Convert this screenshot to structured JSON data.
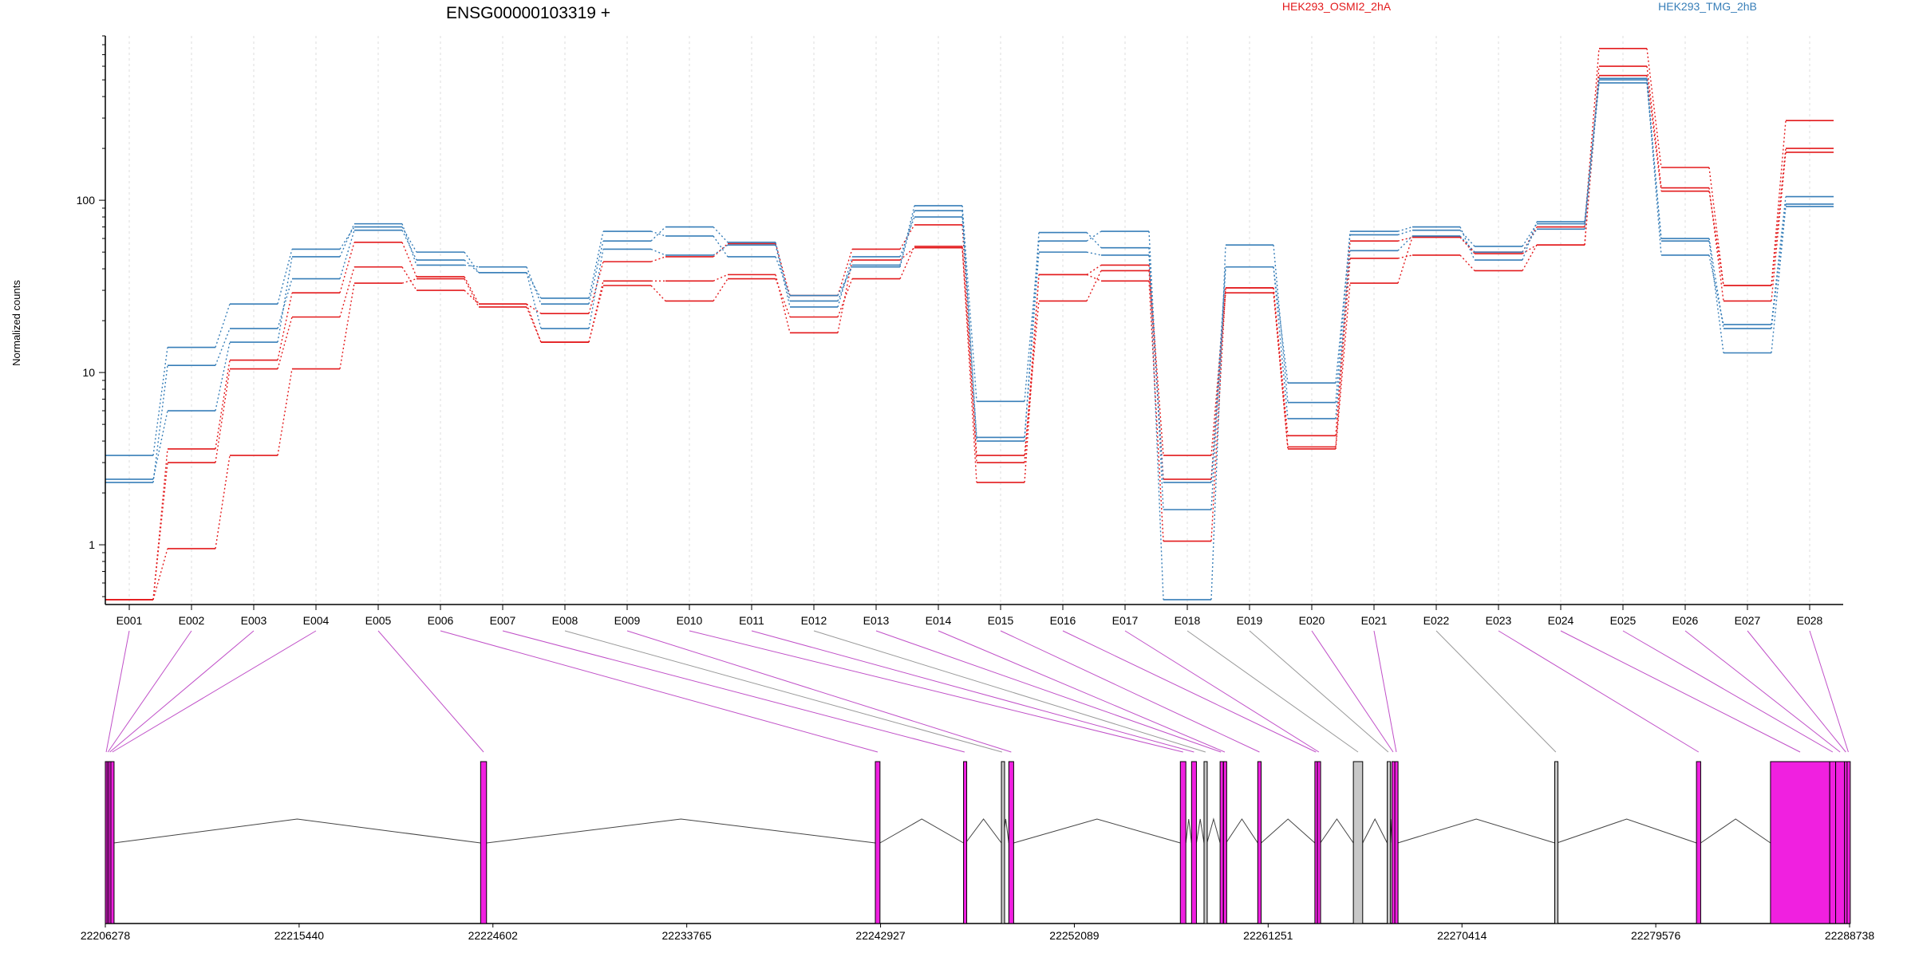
{
  "chart_data": [
    {
      "type": "line",
      "title": "ENSG00000103319 +",
      "ylabel": "Normalized counts",
      "yscale": "log",
      "ylim": [
        0.45,
        900
      ],
      "yticks": [
        {
          "value": 1,
          "label": "1"
        },
        {
          "value": 10,
          "label": "10"
        },
        {
          "value": 100,
          "label": "100"
        }
      ],
      "categories": [
        "E001",
        "E002",
        "E003",
        "E004",
        "E005",
        "E006",
        "E007",
        "E008",
        "E009",
        "E010",
        "E011",
        "E012",
        "E013",
        "E014",
        "E015",
        "E016",
        "E017",
        "E018",
        "E019",
        "E020",
        "E021",
        "E022",
        "E023",
        "E024",
        "E025",
        "E026",
        "E027",
        "E028"
      ],
      "grid": "vertical dotted",
      "legend": [
        {
          "label": "HEK293_OSMI2_2hA",
          "color": "#e31a1c",
          "position": "top-center"
        },
        {
          "label": "HEK293_TMG_2hB",
          "color": "#377eb8",
          "position": "top-right"
        }
      ],
      "series": [
        {
          "group": "HEK293_OSMI2_2hA",
          "color": "#e31a1c",
          "values": [
            0.48,
            3.6,
            11.8,
            29,
            57,
            36,
            25,
            22,
            44,
            47,
            56,
            28,
            52,
            72,
            3.0,
            37,
            42,
            3.3,
            31,
            4.3,
            58,
            61,
            50,
            70,
            760,
            155,
            32,
            290
          ]
        },
        {
          "group": "HEK293_OSMI2_2hA",
          "color": "#e31a1c",
          "values": [
            0.48,
            3.0,
            10.5,
            21,
            41,
            30,
            25,
            15,
            34,
            34,
            37,
            17,
            45,
            53,
            3.3,
            26,
            39,
            2.4,
            29,
            3.7,
            46,
            48,
            39,
            55,
            600,
            118,
            26,
            190
          ]
        },
        {
          "group": "HEK293_OSMI2_2hA",
          "color": "#e31a1c",
          "values": [
            0.48,
            0.95,
            3.3,
            10.5,
            33,
            35,
            24,
            15,
            32,
            26,
            35,
            21,
            35,
            54,
            2.3,
            37,
            34,
            1.05,
            31,
            3.6,
            33,
            61,
            49,
            55,
            530,
            113,
            32,
            200
          ]
        },
        {
          "group": "HEK293_TMG_2hB",
          "color": "#377eb8",
          "values": [
            2.3,
            11,
            18,
            35,
            67,
            45,
            38,
            18,
            52,
            48,
            55,
            24,
            47,
            80,
            4.2,
            50,
            48,
            2.3,
            41,
            5.4,
            51,
            62,
            50,
            68,
            480,
            60,
            18,
            95
          ]
        },
        {
          "group": "HEK293_TMG_2hB",
          "color": "#377eb8",
          "values": [
            2.4,
            6,
            15,
            47,
            73,
            42,
            41,
            25,
            58,
            70,
            57,
            26,
            42,
            93,
            6.8,
            58,
            66,
            1.6,
            41,
            8.7,
            63,
            67,
            54,
            73,
            500,
            48,
            19,
            105
          ]
        },
        {
          "group": "HEK293_TMG_2hB",
          "color": "#377eb8",
          "values": [
            3.3,
            14,
            25,
            52,
            70,
            50,
            38,
            27,
            66,
            62,
            47,
            28,
            41,
            87,
            4.0,
            65,
            53,
            0.48,
            55,
            6.7,
            66,
            70,
            45,
            75,
            510,
            58,
            13,
            92
          ]
        }
      ]
    },
    {
      "type": "gene-model",
      "axis_min": 22206278,
      "axis_max": 22288738,
      "ticks": [
        "22206278",
        "22215440",
        "22224602",
        "22233765",
        "22242927",
        "22252089",
        "22261251",
        "22270414",
        "22279576",
        "22288738"
      ],
      "exon_color": "#f020e0",
      "feature_color": "#c8c8c8",
      "exon_bins": [
        {
          "id": "E001",
          "start": 22206278,
          "end": 22206360,
          "kind": "exon"
        },
        {
          "id": "E002",
          "start": 22206360,
          "end": 22206440,
          "kind": "exon"
        },
        {
          "id": "E003",
          "start": 22206440,
          "end": 22206540,
          "kind": "exon"
        },
        {
          "id": "E004",
          "start": 22206540,
          "end": 22206680,
          "kind": "exon"
        },
        {
          "id": "E005",
          "start": 22224020,
          "end": 22224300,
          "kind": "exon"
        },
        {
          "id": "E006",
          "start": 22242680,
          "end": 22242900,
          "kind": "exon"
        },
        {
          "id": "E007",
          "start": 22246850,
          "end": 22246950,
          "kind": "exon"
        },
        {
          "id": "E008",
          "start": 22248640,
          "end": 22248700,
          "kind": "feature"
        },
        {
          "id": "E009",
          "start": 22248990,
          "end": 22249220,
          "kind": "exon"
        },
        {
          "id": "E010",
          "start": 22257100,
          "end": 22257360,
          "kind": "exon"
        },
        {
          "id": "E011",
          "start": 22257630,
          "end": 22257860,
          "kind": "exon"
        },
        {
          "id": "E012",
          "start": 22258220,
          "end": 22258360,
          "kind": "feature"
        },
        {
          "id": "E013",
          "start": 22258980,
          "end": 22259060,
          "kind": "exon"
        },
        {
          "id": "E014",
          "start": 22259140,
          "end": 22259260,
          "kind": "exon"
        },
        {
          "id": "E015",
          "start": 22260760,
          "end": 22260920,
          "kind": "exon"
        },
        {
          "id": "E016",
          "start": 22263460,
          "end": 22263560,
          "kind": "exon"
        },
        {
          "id": "E017",
          "start": 22263580,
          "end": 22263720,
          "kind": "exon"
        },
        {
          "id": "E018",
          "start": 22265280,
          "end": 22265720,
          "kind": "feature"
        },
        {
          "id": "E019",
          "start": 22266880,
          "end": 22266980,
          "kind": "feature"
        },
        {
          "id": "E020",
          "start": 22267100,
          "end": 22267220,
          "kind": "exon"
        },
        {
          "id": "E021",
          "start": 22267240,
          "end": 22267380,
          "kind": "exon"
        },
        {
          "id": "E022",
          "start": 22274800,
          "end": 22274900,
          "kind": "feature"
        },
        {
          "id": "E023",
          "start": 22281500,
          "end": 22281700,
          "kind": "exon"
        },
        {
          "id": "E024",
          "start": 22285000,
          "end": 22287800,
          "kind": "exon"
        },
        {
          "id": "E025",
          "start": 22287800,
          "end": 22288080,
          "kind": "exon"
        },
        {
          "id": "E026",
          "start": 22288080,
          "end": 22288500,
          "kind": "exon"
        },
        {
          "id": "E027",
          "start": 22288500,
          "end": 22288620,
          "kind": "exon"
        },
        {
          "id": "E028",
          "start": 22288620,
          "end": 22288738,
          "kind": "exon"
        }
      ]
    }
  ]
}
